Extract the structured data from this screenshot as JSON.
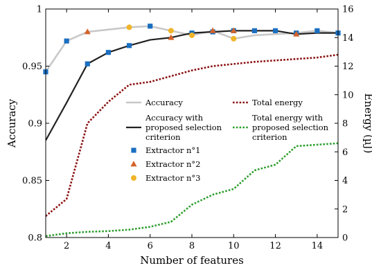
{
  "chart_data": {
    "type": "line",
    "xlabel": "Number of features",
    "ylabel_left": "Accuracy",
    "ylabel_right": "Energy (µJ)",
    "xlim": [
      1,
      15
    ],
    "ylim_left": [
      0.8,
      1.0
    ],
    "ylim_right": [
      0,
      16
    ],
    "x_ticks": [
      2,
      4,
      6,
      8,
      10,
      12,
      14
    ],
    "y_left_ticks": [
      0.8,
      0.85,
      0.9,
      0.95,
      1.0
    ],
    "y_left_tick_labels": [
      "0.8",
      "0.85",
      "0.9",
      "0.95",
      "1"
    ],
    "y_right_ticks": [
      0,
      2,
      4,
      6,
      8,
      10,
      12,
      14,
      16
    ],
    "legend_position": "center-right",
    "series": [
      {
        "name": "Accuracy",
        "axis": "left",
        "style": "line",
        "color": "#c8c8c8",
        "x": [
          1,
          2,
          3,
          4,
          5,
          6,
          7,
          8,
          9,
          10,
          11,
          12,
          13,
          14,
          15
        ],
        "values": [
          0.945,
          0.972,
          0.98,
          0.982,
          0.984,
          0.985,
          0.981,
          0.977,
          0.981,
          0.974,
          0.977,
          0.978,
          0.979,
          0.981,
          0.979
        ]
      },
      {
        "name": "Accuracy with proposed selection criterion",
        "legend_lines": [
          "Accuracy with",
          "proposed selection",
          "criterion"
        ],
        "axis": "left",
        "style": "line",
        "color": "#222222",
        "x": [
          1,
          2,
          3,
          4,
          5,
          6,
          7,
          8,
          9,
          10,
          11,
          12,
          13,
          14,
          15
        ],
        "values": [
          0.885,
          0.918,
          0.952,
          0.962,
          0.968,
          0.973,
          0.975,
          0.979,
          0.98,
          0.981,
          0.981,
          0.981,
          0.978,
          0.979,
          0.979
        ]
      },
      {
        "name": "Total energy",
        "axis": "right",
        "style": "dotted",
        "color": "#8b0f0f",
        "x": [
          1,
          2,
          3,
          4,
          5,
          6,
          7,
          8,
          9,
          10,
          11,
          12,
          13,
          14,
          15
        ],
        "values": [
          1.5,
          2.7,
          8.0,
          9.5,
          10.7,
          10.9,
          11.3,
          11.7,
          12.0,
          12.15,
          12.3,
          12.4,
          12.5,
          12.6,
          12.8
        ]
      },
      {
        "name": "Total energy with proposed selection criterion",
        "legend_lines": [
          "Total energy with",
          "proposed selection",
          "criterion"
        ],
        "axis": "right",
        "style": "dotted",
        "color": "#2e9e2e",
        "x": [
          1,
          2,
          3,
          4,
          5,
          6,
          7,
          8,
          9,
          10,
          11,
          12,
          13,
          14,
          15
        ],
        "values": [
          0.1,
          0.3,
          0.4,
          0.45,
          0.55,
          0.75,
          1.1,
          2.3,
          3.0,
          3.4,
          4.7,
          5.1,
          6.4,
          6.5,
          6.6
        ]
      },
      {
        "name": "Extractor n°1",
        "axis": "left",
        "style": "marker",
        "marker": "square",
        "color": "#1a6fc0",
        "x": [
          1,
          2,
          3,
          4,
          5,
          6,
          8,
          9,
          10,
          11,
          12,
          13,
          14,
          15
        ],
        "values": [
          0.945,
          0.972,
          0.952,
          0.962,
          0.968,
          0.985,
          0.979,
          0.98,
          0.981,
          0.981,
          0.981,
          0.979,
          0.981,
          0.979
        ]
      },
      {
        "name": "Extractor n°2",
        "axis": "left",
        "style": "marker",
        "marker": "triangle",
        "color": "#d4622a",
        "x": [
          3,
          7,
          9,
          10,
          13
        ],
        "values": [
          0.98,
          0.975,
          0.981,
          0.981,
          0.978
        ]
      },
      {
        "name": "Extractor n°3",
        "axis": "left",
        "style": "marker",
        "marker": "circle",
        "color": "#f0b429",
        "x": [
          5,
          7,
          8,
          10
        ],
        "values": [
          0.984,
          0.981,
          0.977,
          0.974
        ]
      }
    ]
  }
}
